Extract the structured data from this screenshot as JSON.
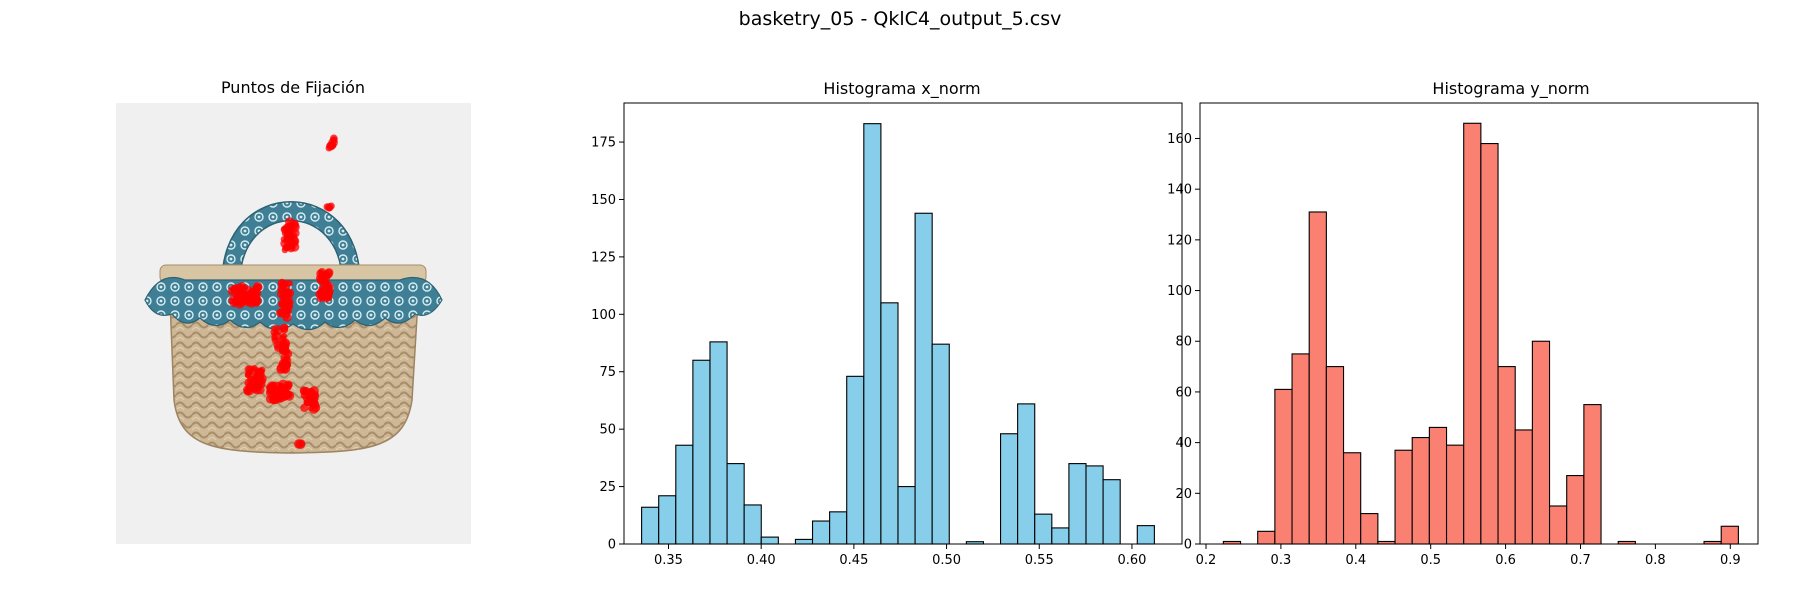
{
  "figure": {
    "title": "basketry_05 - QklC4_output_5.csv"
  },
  "image_panel": {
    "title": "Puntos de Fijación",
    "image_description_icon": "basket-with-fixation-points-image"
  },
  "colors": {
    "x_hist": "#87ceeb",
    "y_hist": "#fa8072",
    "fixation": "#ff0000",
    "image_bg": "#f0f0f0"
  },
  "chart_data": [
    {
      "type": "bar",
      "title": "Histograma x_norm",
      "xlabel": "",
      "ylabel": "",
      "xlim": [
        0.326,
        0.627
      ],
      "ylim": [
        0,
        192
      ],
      "xticks": [
        0.35,
        0.4,
        0.45,
        0.5,
        0.55,
        0.6
      ],
      "xtick_labels": [
        "0.35",
        "0.40",
        "0.45",
        "0.50",
        "0.55",
        "0.60"
      ],
      "yticks": [
        0,
        25,
        50,
        75,
        100,
        125,
        150,
        175
      ],
      "ytick_labels": [
        "0",
        "25",
        "50",
        "75",
        "100",
        "125",
        "150",
        "175"
      ],
      "bin_start": 0.3355,
      "bin_width": 0.00922,
      "counts": [
        16,
        21,
        43,
        80,
        88,
        35,
        17,
        3,
        0,
        2,
        10,
        14,
        73,
        183,
        105,
        25,
        144,
        87,
        0,
        1,
        0,
        48,
        61,
        13,
        7,
        35,
        34,
        28,
        0,
        8
      ],
      "grid": false
    },
    {
      "type": "bar",
      "title": "Histograma y_norm",
      "xlabel": "",
      "ylabel": "",
      "xlim": [
        0.192,
        0.937
      ],
      "ylim": [
        0,
        174
      ],
      "xticks": [
        0.2,
        0.3,
        0.4,
        0.5,
        0.6,
        0.7,
        0.8,
        0.9
      ],
      "xtick_labels": [
        "0.2",
        "0.3",
        "0.4",
        "0.5",
        "0.6",
        "0.7",
        "0.8",
        "0.9"
      ],
      "yticks": [
        0,
        20,
        40,
        60,
        80,
        100,
        120,
        140,
        160
      ],
      "ytick_labels": [
        "0",
        "20",
        "40",
        "60",
        "80",
        "100",
        "120",
        "140",
        "160"
      ],
      "bin_start": 0.2232,
      "bin_width": 0.02292,
      "counts": [
        1,
        0,
        5,
        61,
        75,
        131,
        70,
        36,
        12,
        1,
        37,
        42,
        46,
        39,
        166,
        158,
        70,
        45,
        80,
        15,
        27,
        55,
        0,
        1,
        0,
        0,
        0,
        0,
        1,
        7
      ],
      "grid": false
    }
  ]
}
